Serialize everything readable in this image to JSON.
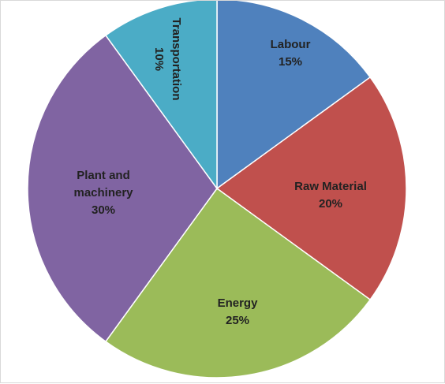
{
  "chart_data": {
    "type": "pie",
    "title": "",
    "start_angle_deg": 0,
    "direction": "clockwise",
    "legend": "none",
    "slices": [
      {
        "label": "Labour",
        "value": 15,
        "value_text": "15%",
        "color": "#4f81bd"
      },
      {
        "label": "Raw Material",
        "value": 20,
        "value_text": "20%",
        "color": "#c0504d"
      },
      {
        "label": "Energy",
        "value": 25,
        "value_text": "25%",
        "color": "#9bbb59"
      },
      {
        "label": "Plant and machinery",
        "value": 30,
        "value_text": "30%",
        "color": "#8064a2"
      },
      {
        "label": "Transportation",
        "value": 10,
        "value_text": "10%",
        "color": "#4bacc6"
      }
    ]
  }
}
